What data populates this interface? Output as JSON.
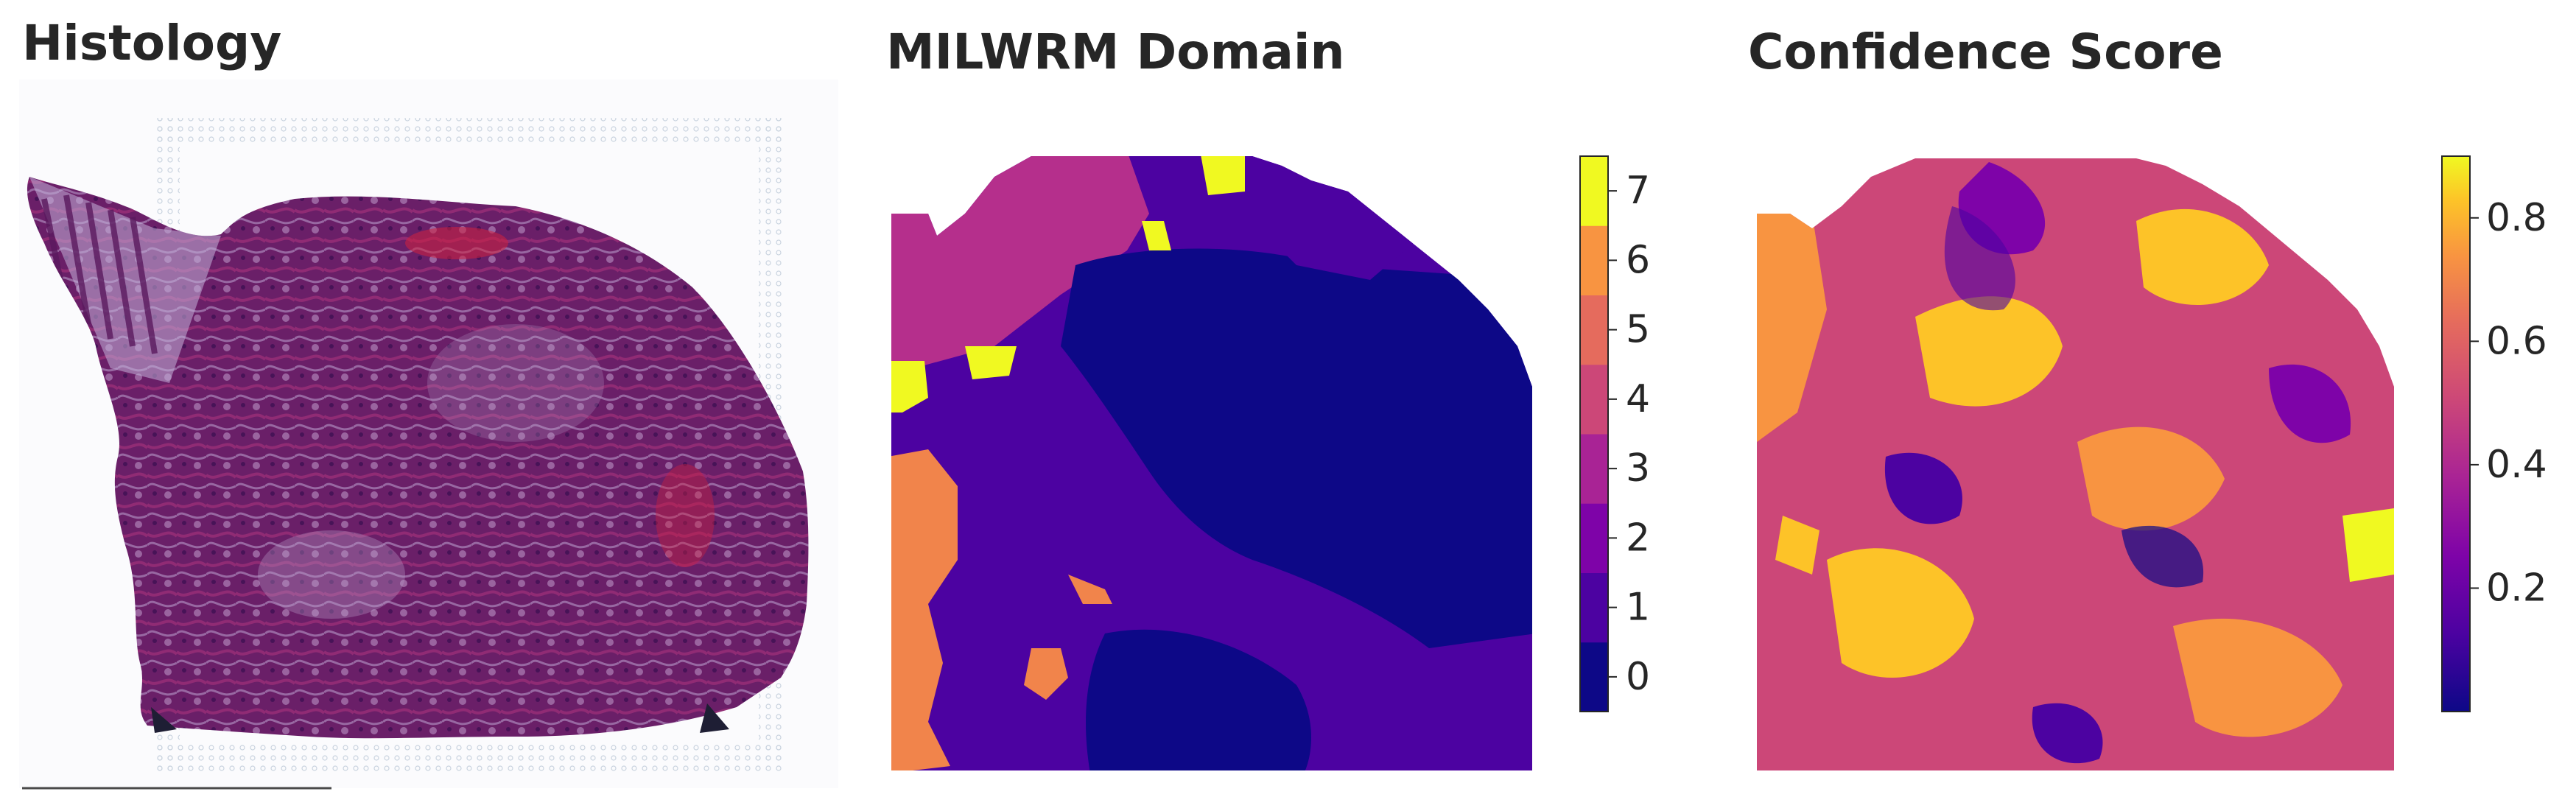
{
  "panels": {
    "histology": {
      "title": "Histology"
    },
    "domain": {
      "title": "MILWRM Domain"
    },
    "confidence": {
      "title": "Confidence Score"
    }
  },
  "colors": {
    "tissue_dark": "#5a1a5e",
    "tissue_mid": "#8a3a7e",
    "tissue_pink": "#b0306a",
    "spot_grid": "#c9d3df",
    "domain_palette": [
      "#0d0887",
      "#4c02a1",
      "#7e03a8",
      "#a92395",
      "#cc4778",
      "#e56b5d",
      "#f89441",
      "#fdc328",
      "#f0f921"
    ]
  },
  "chart_data": [
    {
      "type": "heatmap",
      "title": "MILWRM Domain",
      "colorbar": {
        "ticks": [
          "0",
          "1",
          "2",
          "3",
          "4",
          "5",
          "6",
          "7"
        ],
        "range": [
          -0.5,
          7.5
        ],
        "colormap": "plasma (discrete, 8 levels)"
      },
      "values": "categorical domain label per spot (0–7)",
      "dominant_domains": [
        0,
        1
      ],
      "notes": "domain 3 upper-left region; domain 5 lower-left edge; domain 7 small patches near top"
    },
    {
      "type": "heatmap",
      "title": "Confidence Score",
      "colorbar": {
        "ticks": [
          "0.2",
          "0.4",
          "0.6",
          "0.8"
        ],
        "range": [
          0.0,
          0.9
        ],
        "colormap": "plasma"
      },
      "values": "continuous confidence score per spot"
    }
  ]
}
